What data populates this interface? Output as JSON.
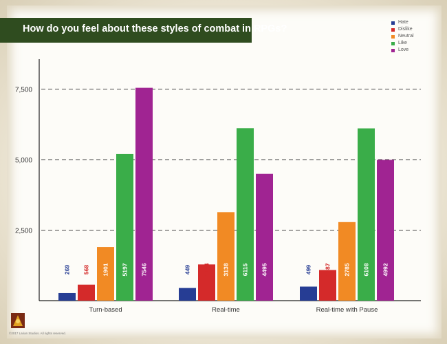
{
  "chart_data": {
    "type": "bar",
    "title": "How do you feel about these styles of combat in RPGs?",
    "categories": [
      "Turn-based",
      "Real-time",
      "Real-time with Pause"
    ],
    "series": [
      {
        "name": "Hate",
        "color": "#263d94",
        "values": [
          269,
          449,
          499
        ]
      },
      {
        "name": "Dislike",
        "color": "#d42a2a",
        "values": [
          568,
          1284,
          1087
        ]
      },
      {
        "name": "Neutral",
        "color": "#f18a24",
        "values": [
          1901,
          3138,
          2785
        ]
      },
      {
        "name": "Like",
        "color": "#3aad49",
        "values": [
          5197,
          6115,
          6108
        ]
      },
      {
        "name": "Love",
        "color": "#a02492",
        "values": [
          7546,
          4495,
          4992
        ]
      }
    ],
    "value_labels": [
      [
        "269",
        "449",
        "499"
      ],
      [
        "568",
        "1284",
        "1087"
      ],
      [
        "1901",
        "3138",
        "2785"
      ],
      [
        "5197",
        "6115",
        "6108"
      ],
      [
        "7546",
        "4495",
        "4992"
      ]
    ],
    "yticks": [
      "2,500",
      "5,000",
      "7,500"
    ],
    "ytick_values": [
      2500,
      5000,
      7500
    ],
    "ylim": [
      0,
      8000
    ],
    "grid": "dashed horizontal",
    "legend": "top-right"
  },
  "footer": {
    "copyright": "©2017 Larian Studios. All rights reserved."
  }
}
